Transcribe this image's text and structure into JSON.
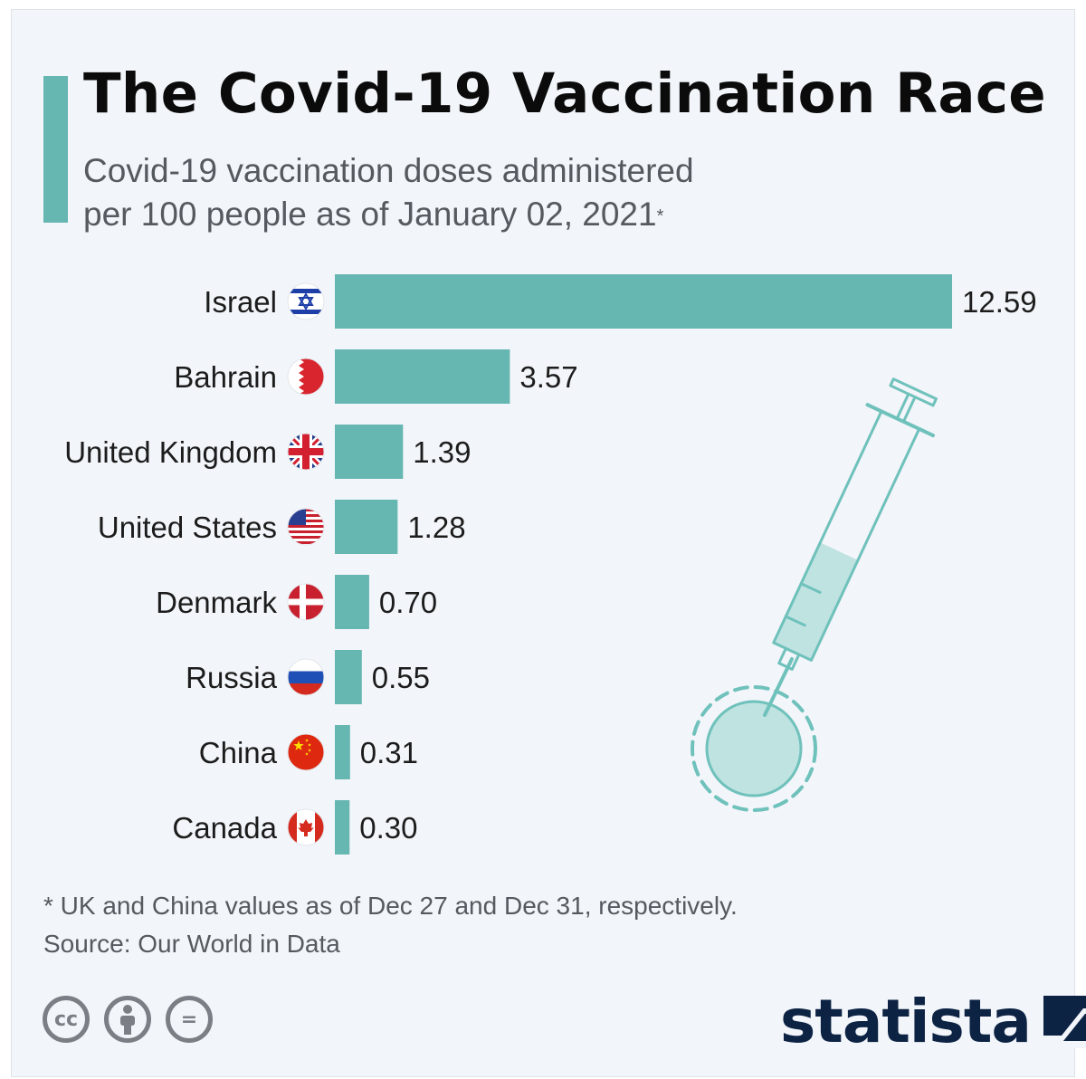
{
  "colors": {
    "accent": "#66b6b2",
    "bar": "#66b6b2",
    "brand": "#0d2344",
    "syringe_stroke": "#6fc1bc",
    "syringe_fill": "#bfe3e0"
  },
  "header": {
    "title": "The Covid-19 Vaccination Race",
    "subtitle_line1": "Covid-19 vaccination doses administered",
    "subtitle_line2": "per 100 people as of January 02, 2021",
    "subtitle_mark": "*"
  },
  "chart_data": {
    "type": "bar",
    "orientation": "horizontal",
    "categories": [
      "Israel",
      "Bahrain",
      "United Kingdom",
      "United States",
      "Denmark",
      "Russia",
      "China",
      "Canada"
    ],
    "values": [
      12.59,
      3.57,
      1.39,
      1.28,
      0.7,
      0.55,
      0.31,
      0.3
    ],
    "value_labels": [
      "12.59",
      "3.57",
      "1.39",
      "1.28",
      "0.70",
      "0.55",
      "0.31",
      "0.30"
    ],
    "flags": [
      "israel-flag-icon",
      "bahrain-flag-icon",
      "uk-flag-icon",
      "us-flag-icon",
      "denmark-flag-icon",
      "russia-flag-icon",
      "china-flag-icon",
      "canada-flag-icon"
    ],
    "xlim": [
      0,
      12.59
    ],
    "grid": false,
    "legend": "none"
  },
  "footer": {
    "footnote": "* UK and China values as of Dec 27 and Dec 31, respectively.",
    "source": "Source: Our World in Data",
    "license_icons": [
      "cc-icon",
      "attribution-icon",
      "no-derivatives-icon"
    ],
    "license_glyphs": [
      "cc",
      "",
      "="
    ],
    "brand": "statista"
  }
}
